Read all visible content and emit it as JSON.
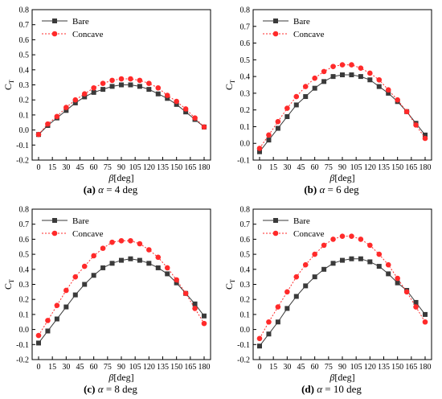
{
  "figure": {
    "colors": {
      "bare": "#3a3a3a",
      "concave": "#ff2a2a",
      "axis": "#000000"
    },
    "panels": [
      {
        "caption": {
          "letter": "(a)",
          "symbol": "α",
          "rest": " = 4 deg"
        },
        "chart_data": {
          "type": "line",
          "xlabel_symbol": "β",
          "xlabel_unit": "[deg]",
          "ylabel_main": "C",
          "ylabel_sub": "T",
          "xlim": [
            0,
            180
          ],
          "ylim": [
            -0.2,
            0.8
          ],
          "xticks": [
            0,
            15,
            30,
            45,
            60,
            75,
            90,
            105,
            120,
            135,
            150,
            165,
            180
          ],
          "yticks": [
            -0.2,
            -0.1,
            0.0,
            0.1,
            0.2,
            0.3,
            0.4,
            0.5,
            0.6,
            0.7,
            0.8
          ],
          "legend_position": "top-left",
          "x": [
            0,
            10,
            20,
            30,
            40,
            50,
            60,
            70,
            80,
            90,
            100,
            110,
            120,
            130,
            140,
            150,
            160,
            170,
            180
          ],
          "series": [
            {
              "name": "Bare",
              "style": "solid-square",
              "values": [
                -0.03,
                0.03,
                0.08,
                0.13,
                0.18,
                0.22,
                0.25,
                0.27,
                0.29,
                0.3,
                0.3,
                0.29,
                0.27,
                0.24,
                0.21,
                0.17,
                0.12,
                0.07,
                0.02
              ]
            },
            {
              "name": "Concave",
              "style": "dotted-circle",
              "values": [
                -0.03,
                0.04,
                0.09,
                0.15,
                0.2,
                0.24,
                0.28,
                0.31,
                0.33,
                0.34,
                0.34,
                0.33,
                0.31,
                0.28,
                0.23,
                0.19,
                0.14,
                0.08,
                0.02
              ]
            }
          ]
        }
      },
      {
        "caption": {
          "letter": "(b)",
          "symbol": "α",
          "rest": " = 6 deg"
        },
        "chart_data": {
          "type": "line",
          "xlabel_symbol": "β",
          "xlabel_unit": "[deg]",
          "ylabel_main": "C",
          "ylabel_sub": "T",
          "xlim": [
            0,
            180
          ],
          "ylim": [
            -0.1,
            0.8
          ],
          "xticks": [
            0,
            15,
            30,
            45,
            60,
            75,
            90,
            105,
            120,
            135,
            150,
            165,
            180
          ],
          "yticks": [
            -0.1,
            0.0,
            0.1,
            0.2,
            0.3,
            0.4,
            0.5,
            0.6,
            0.7,
            0.8
          ],
          "legend_position": "top-left",
          "x": [
            0,
            10,
            20,
            30,
            40,
            50,
            60,
            70,
            80,
            90,
            100,
            110,
            120,
            130,
            140,
            150,
            160,
            170,
            180
          ],
          "series": [
            {
              "name": "Bare",
              "style": "solid-square",
              "values": [
                -0.05,
                0.02,
                0.09,
                0.16,
                0.23,
                0.28,
                0.33,
                0.37,
                0.4,
                0.41,
                0.41,
                0.4,
                0.38,
                0.34,
                0.3,
                0.25,
                0.19,
                0.12,
                0.05
              ]
            },
            {
              "name": "Concave",
              "style": "dotted-circle",
              "values": [
                -0.03,
                0.05,
                0.13,
                0.21,
                0.28,
                0.34,
                0.39,
                0.43,
                0.46,
                0.47,
                0.47,
                0.45,
                0.42,
                0.38,
                0.32,
                0.26,
                0.19,
                0.11,
                0.03
              ]
            }
          ]
        }
      },
      {
        "caption": {
          "letter": "(c)",
          "symbol": "α",
          "rest": " = 8 deg"
        },
        "chart_data": {
          "type": "line",
          "xlabel_symbol": "β",
          "xlabel_unit": "[deg]",
          "ylabel_main": "C",
          "ylabel_sub": "T",
          "xlim": [
            0,
            180
          ],
          "ylim": [
            -0.2,
            0.8
          ],
          "xticks": [
            0,
            15,
            30,
            45,
            60,
            75,
            90,
            105,
            120,
            135,
            150,
            165,
            180
          ],
          "yticks": [
            -0.2,
            -0.1,
            0.0,
            0.1,
            0.2,
            0.3,
            0.4,
            0.5,
            0.6,
            0.7,
            0.8
          ],
          "legend_position": "top-left",
          "x": [
            0,
            10,
            20,
            30,
            40,
            50,
            60,
            70,
            80,
            90,
            100,
            110,
            120,
            130,
            140,
            150,
            160,
            170,
            180
          ],
          "series": [
            {
              "name": "Bare",
              "style": "solid-square",
              "values": [
                -0.09,
                -0.01,
                0.07,
                0.15,
                0.23,
                0.3,
                0.36,
                0.41,
                0.44,
                0.46,
                0.47,
                0.46,
                0.44,
                0.41,
                0.37,
                0.31,
                0.24,
                0.17,
                0.09
              ]
            },
            {
              "name": "Concave",
              "style": "dotted-circle",
              "values": [
                -0.04,
                0.06,
                0.16,
                0.26,
                0.35,
                0.42,
                0.49,
                0.54,
                0.58,
                0.59,
                0.59,
                0.57,
                0.53,
                0.48,
                0.41,
                0.33,
                0.24,
                0.14,
                0.04
              ]
            }
          ]
        }
      },
      {
        "caption": {
          "letter": "(d)",
          "symbol": "α",
          "rest": " = 10 deg"
        },
        "chart_data": {
          "type": "line",
          "xlabel_symbol": "β",
          "xlabel_unit": "[deg]",
          "ylabel_main": "C",
          "ylabel_sub": "T",
          "xlim": [
            0,
            180
          ],
          "ylim": [
            -0.2,
            0.8
          ],
          "xticks": [
            0,
            15,
            30,
            45,
            60,
            75,
            90,
            105,
            120,
            135,
            150,
            165,
            180
          ],
          "yticks": [
            -0.2,
            -0.1,
            0.0,
            0.1,
            0.2,
            0.3,
            0.4,
            0.5,
            0.6,
            0.7,
            0.8
          ],
          "legend_position": "top-left",
          "x": [
            0,
            10,
            20,
            30,
            40,
            50,
            60,
            70,
            80,
            90,
            100,
            110,
            120,
            130,
            140,
            150,
            160,
            170,
            180
          ],
          "series": [
            {
              "name": "Bare",
              "style": "solid-square",
              "values": [
                -0.11,
                -0.03,
                0.05,
                0.14,
                0.22,
                0.29,
                0.35,
                0.4,
                0.44,
                0.46,
                0.47,
                0.47,
                0.45,
                0.42,
                0.37,
                0.31,
                0.26,
                0.18,
                0.1
              ]
            },
            {
              "name": "Concave",
              "style": "dotted-circle",
              "values": [
                -0.06,
                0.05,
                0.15,
                0.25,
                0.35,
                0.43,
                0.5,
                0.56,
                0.6,
                0.62,
                0.62,
                0.6,
                0.56,
                0.5,
                0.43,
                0.34,
                0.25,
                0.15,
                0.05
              ]
            }
          ]
        }
      }
    ]
  }
}
